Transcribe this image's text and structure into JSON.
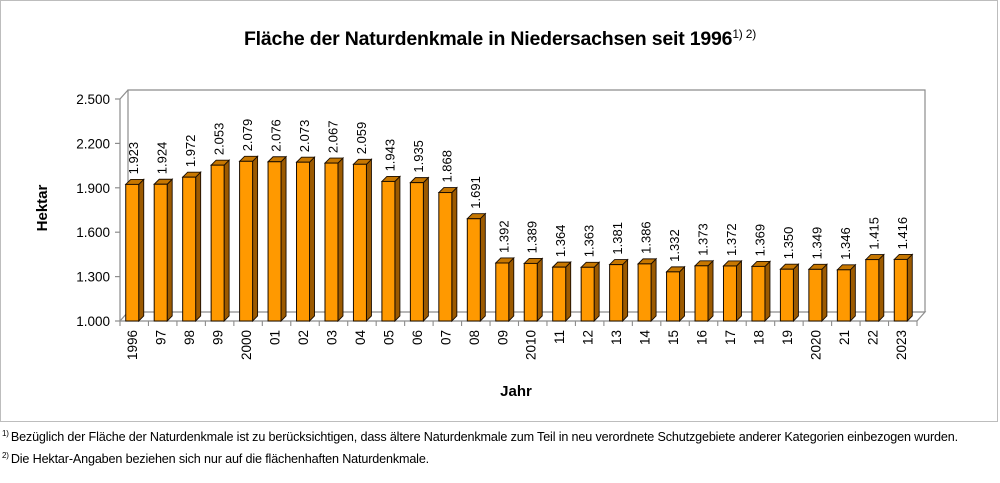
{
  "chart_data": {
    "type": "bar",
    "title": "Fläche der Naturdenkmale in Niedersachsen seit 1996",
    "title_superscript": "1) 2)",
    "xlabel": "Jahr",
    "ylabel": "Hektar",
    "ylim": [
      1000,
      2500
    ],
    "yticks": [
      1000,
      1300,
      1600,
      1900,
      2200,
      2500
    ],
    "ytick_labels": [
      "1.000",
      "1.300",
      "1.600",
      "1.900",
      "2.200",
      "2.500"
    ],
    "categories": [
      "1996",
      "97",
      "98",
      "99",
      "2000",
      "01",
      "02",
      "03",
      "04",
      "05",
      "06",
      "07",
      "08",
      "09",
      "2010",
      "11",
      "12",
      "13",
      "14",
      "15",
      "16",
      "17",
      "18",
      "19",
      "2020",
      "21",
      "22",
      "2023"
    ],
    "values": [
      1923,
      1924,
      1972,
      2053,
      2079,
      2076,
      2073,
      2067,
      2059,
      1943,
      1935,
      1868,
      1691,
      1392,
      1389,
      1364,
      1363,
      1381,
      1386,
      1332,
      1373,
      1372,
      1369,
      1350,
      1349,
      1346,
      1415,
      1416
    ],
    "value_labels": [
      "1.923",
      "1.924",
      "1.972",
      "2.053",
      "2.079",
      "2.076",
      "2.073",
      "2.067",
      "2.059",
      "1.943",
      "1.935",
      "1.868",
      "1.691",
      "1.392",
      "1.389",
      "1.364",
      "1.363",
      "1.381",
      "1.386",
      "1.332",
      "1.373",
      "1.372",
      "1.369",
      "1.350",
      "1.349",
      "1.346",
      "1.415",
      "1.416"
    ],
    "grid": false,
    "legend": "none",
    "style": "3d-bar",
    "colors": {
      "bar_front": "#ff9900",
      "bar_side": "#9c5a00",
      "bar_top": "#c77700",
      "bar_outline": "#1a0d00",
      "axis": "#8c8c8c"
    }
  },
  "footnotes": [
    {
      "marker": "1)",
      "text": "Bezüglich der Fläche der Naturdenkmale ist zu berücksichtigen, dass ältere Naturdenkmale zum Teil in neu verordnete Schutzgebiete anderer Kategorien einbezogen wurden."
    },
    {
      "marker": "2)",
      "text": "Die Hektar-Angaben beziehen sich nur auf die flächenhaften Naturdenkmale."
    }
  ]
}
